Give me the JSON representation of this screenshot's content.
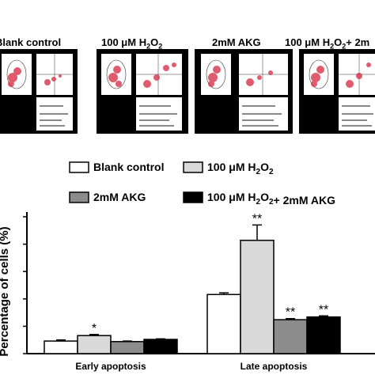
{
  "panels": [
    {
      "label": "Blank control"
    },
    {
      "label_pre": "100 μM H",
      "label_sub": "2",
      "label_mid": "O",
      "label_sub2": "2",
      "label_post": ""
    },
    {
      "label": "2mM AKG"
    },
    {
      "label_pre": "100 μM H",
      "label_sub": "2",
      "label_mid": "O",
      "label_sub2": "2",
      "label_post": "+ 2m"
    }
  ],
  "chart_data": {
    "type": "bar",
    "title": "",
    "xlabel": "",
    "ylabel": "Percentage of cells (%)",
    "ylim": [
      0,
      25
    ],
    "categories": [
      "Early apoptosis",
      "Late apoptosis"
    ],
    "series": [
      {
        "name": "Blank control",
        "values": [
          2.3,
          10.8
        ],
        "errors": [
          0.2,
          0.3
        ],
        "color": "#ffffff",
        "marks": [
          "",
          ""
        ]
      },
      {
        "name": "100 μM H2O2",
        "values": [
          3.3,
          20.7
        ],
        "errors": [
          0.2,
          2.8
        ],
        "color": "#d9d9d9",
        "marks": [
          "*",
          "**"
        ]
      },
      {
        "name": "2mM AKG",
        "values": [
          2.2,
          6.2
        ],
        "errors": [
          0.1,
          0.2
        ],
        "color": "#8c8c8c",
        "marks": [
          "",
          "**"
        ]
      },
      {
        "name": "100 μM H2O2+ 2mM AKG",
        "values": [
          2.6,
          6.7
        ],
        "errors": [
          0.1,
          0.2
        ],
        "color": "#000000",
        "marks": [
          "",
          "**"
        ]
      }
    ],
    "legend_placement": "top"
  }
}
